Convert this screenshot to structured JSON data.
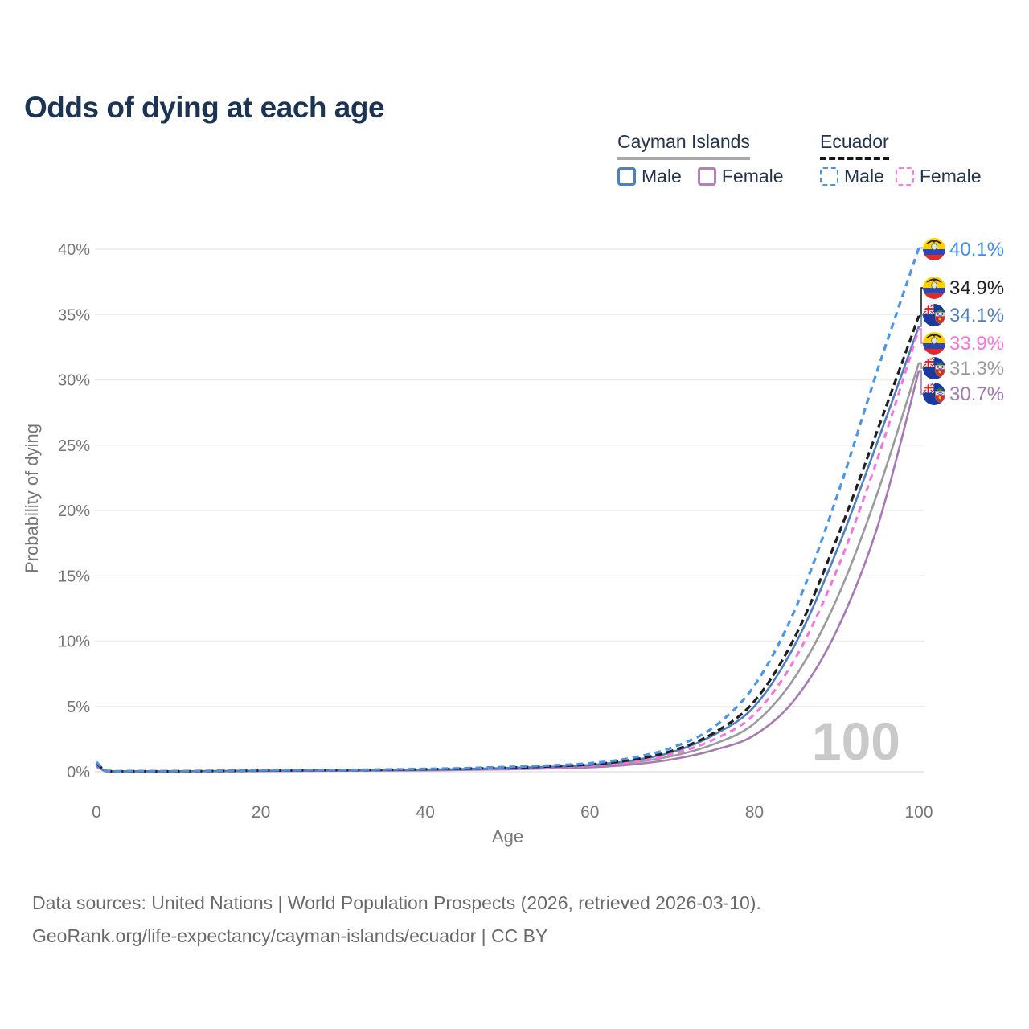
{
  "header": {
    "title": "Odds of dying at each age"
  },
  "legend": {
    "groups": [
      {
        "name": "Cayman Islands",
        "line_style": "solid",
        "underline_color": "#a8a8a8",
        "items": [
          {
            "label": "Male",
            "color": "#4e7fc0"
          },
          {
            "label": "Female",
            "color": "#b77fb8"
          }
        ]
      },
      {
        "name": "Ecuador",
        "line_style": "dashed",
        "underline_color": "#161616",
        "items": [
          {
            "label": "Male",
            "color": "#4a94ea"
          },
          {
            "label": "Female",
            "color": "#fb7ce4"
          }
        ]
      }
    ]
  },
  "chart_data": {
    "type": "line",
    "title": "Odds of dying at each age",
    "xlabel": "Age",
    "ylabel": "Probability of dying",
    "xlim": [
      0,
      100
    ],
    "ylim": [
      0,
      40
    ],
    "xticks": [
      0,
      20,
      40,
      60,
      80,
      100
    ],
    "yticks": [
      0,
      5,
      10,
      15,
      20,
      25,
      30,
      35,
      40
    ],
    "ytick_suffix": "%",
    "grid": "horizontal",
    "legend_position": "top-right",
    "watermark": "100",
    "x": [
      0,
      1,
      5,
      10,
      15,
      20,
      25,
      30,
      35,
      40,
      45,
      50,
      55,
      60,
      65,
      70,
      75,
      80,
      85,
      90,
      95,
      100
    ],
    "series": [
      {
        "name": "Ecuador — Male",
        "country": "Ecuador",
        "sex": "Male",
        "flag": "ecuador",
        "color": "#4a94ea",
        "label_color": "#3f8fe6",
        "dash": "8 6",
        "width": 3.2,
        "end_label": "40.1%",
        "end_value": 40.1,
        "values": [
          0.75,
          0.1,
          0.05,
          0.05,
          0.08,
          0.11,
          0.13,
          0.15,
          0.18,
          0.22,
          0.28,
          0.37,
          0.48,
          0.65,
          1.05,
          1.85,
          3.4,
          6.6,
          12.5,
          21.0,
          30.8,
          40.1
        ]
      },
      {
        "name": "Ecuador — Both sexes",
        "country": "Ecuador",
        "sex": "Both",
        "flag": "ecuador",
        "color": "#1f1f1f",
        "label_color": "#1f1f1f",
        "dash": "9 5",
        "width": 3.2,
        "end_label": "34.9%",
        "end_value": 34.9,
        "values": [
          0.65,
          0.08,
          0.04,
          0.04,
          0.06,
          0.09,
          0.11,
          0.13,
          0.15,
          0.19,
          0.24,
          0.31,
          0.41,
          0.56,
          0.9,
          1.6,
          2.95,
          5.4,
          10.4,
          17.8,
          26.2,
          34.9
        ]
      },
      {
        "name": "Cayman Islands — Male",
        "country": "Cayman Islands",
        "sex": "Male",
        "flag": "cayman",
        "color": "#4e7fc0",
        "label_color": "#4e7fc0",
        "dash": null,
        "width": 2.6,
        "end_label": "34.1%",
        "end_value": 34.1,
        "values": [
          0.5,
          0.07,
          0.04,
          0.04,
          0.06,
          0.08,
          0.1,
          0.12,
          0.14,
          0.17,
          0.22,
          0.29,
          0.38,
          0.52,
          0.85,
          1.5,
          2.8,
          5.0,
          9.8,
          16.9,
          25.3,
          34.1
        ]
      },
      {
        "name": "Ecuador — Female",
        "country": "Ecuador",
        "sex": "Female",
        "flag": "ecuador",
        "color": "#fb72dd",
        "label_color": "#fb72dd",
        "dash": "8 6",
        "width": 3,
        "end_label": "33.9%",
        "end_value": 33.9,
        "values": [
          0.6,
          0.07,
          0.04,
          0.04,
          0.05,
          0.07,
          0.08,
          0.1,
          0.12,
          0.15,
          0.2,
          0.26,
          0.34,
          0.46,
          0.75,
          1.35,
          2.45,
          4.4,
          8.7,
          15.4,
          24.0,
          33.9
        ]
      },
      {
        "name": "Cayman Islands — Both sexes",
        "country": "Cayman Islands",
        "sex": "Both",
        "flag": "cayman",
        "color": "#9b9b9b",
        "label_color": "#9b9b9b",
        "dash": null,
        "width": 2.6,
        "end_label": "31.3%",
        "end_value": 31.3,
        "values": [
          0.45,
          0.06,
          0.03,
          0.03,
          0.05,
          0.07,
          0.08,
          0.1,
          0.12,
          0.14,
          0.18,
          0.24,
          0.32,
          0.43,
          0.7,
          1.2,
          2.1,
          3.7,
          7.3,
          13.2,
          21.4,
          31.3
        ]
      },
      {
        "name": "Cayman Islands — Female",
        "country": "Cayman Islands",
        "sex": "Female",
        "flag": "cayman",
        "color": "#a878b5",
        "label_color": "#a878b5",
        "dash": null,
        "width": 2.6,
        "end_label": "30.7%",
        "end_value": 30.7,
        "values": [
          0.4,
          0.05,
          0.03,
          0.03,
          0.04,
          0.05,
          0.06,
          0.08,
          0.09,
          0.11,
          0.15,
          0.19,
          0.26,
          0.34,
          0.55,
          0.95,
          1.65,
          2.8,
          5.6,
          10.8,
          18.8,
          30.7
        ]
      }
    ]
  },
  "footer": {
    "line1": "Data sources: United Nations | World Population Prospects (2026, retrieved 2026-03-10).",
    "line2": "GeoRank.org/life-expectancy/cayman-islands/ecuador | CC BY"
  }
}
